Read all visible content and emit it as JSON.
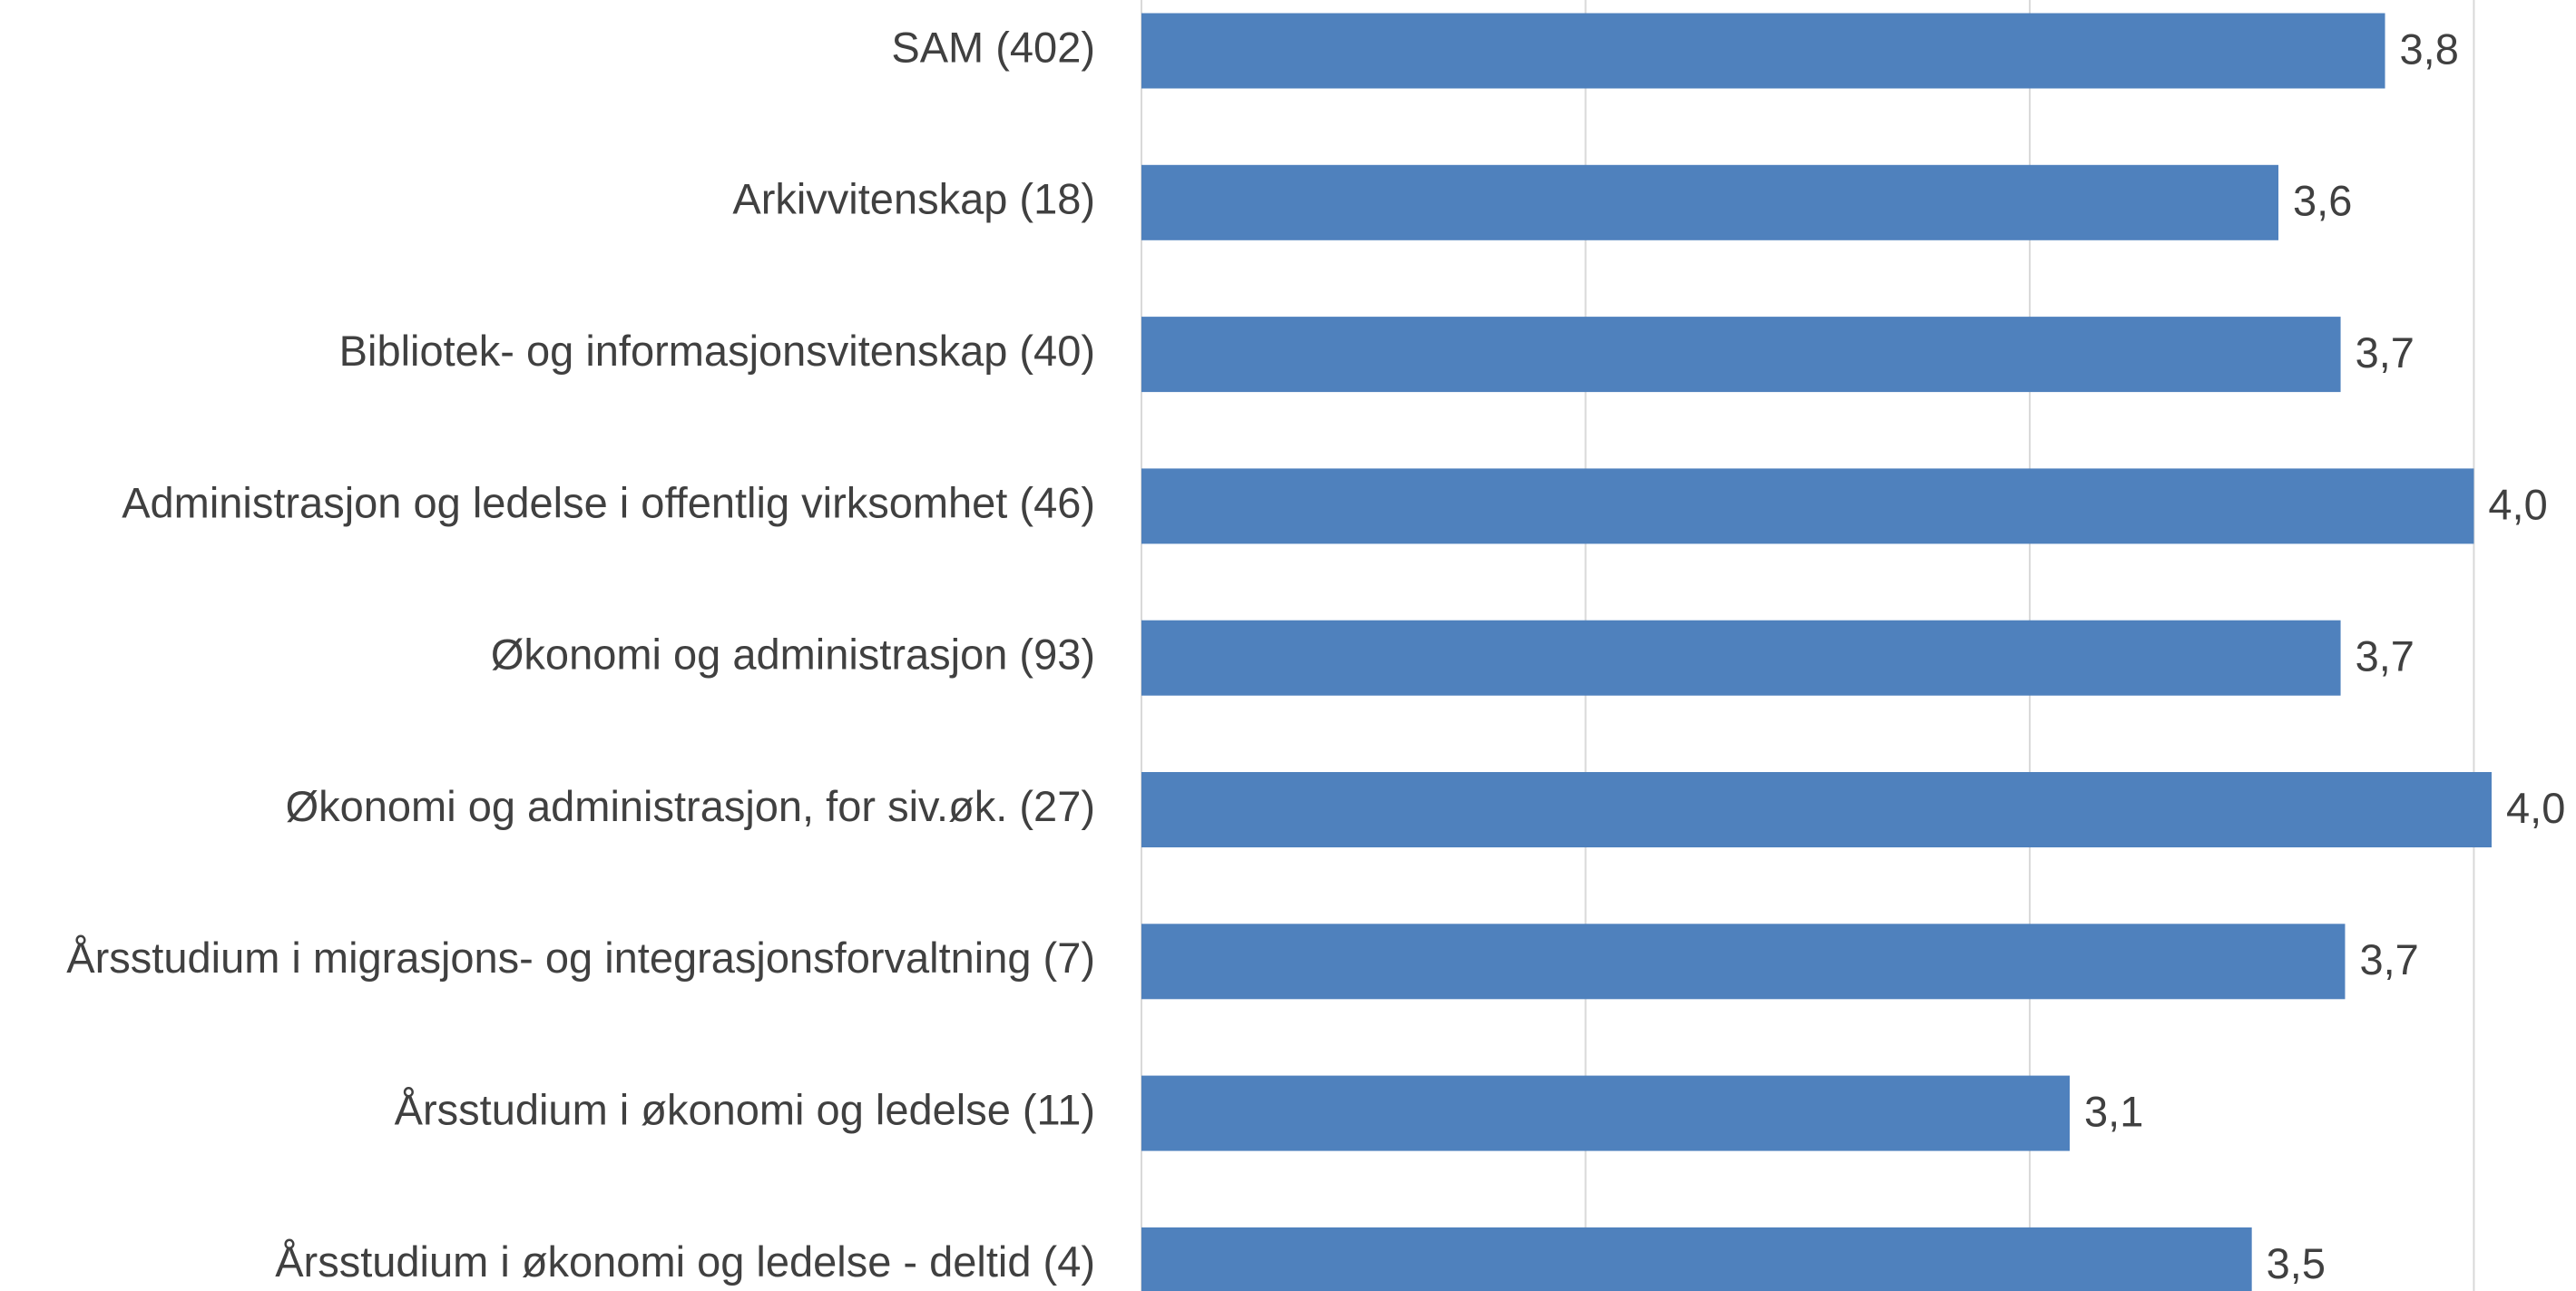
{
  "chart_data": {
    "type": "barh",
    "categories": [
      "SAM (402)",
      "Arkivvitenskap (18)",
      "Bibliotek- og informasjonsvitenskap (40)",
      "Administrasjon og ledelse i offentlig virksomhet (46)",
      "Økonomi og administrasjon (93)",
      "Økonomi og administrasjon, for siv.øk. (27)",
      "Årsstudium i migrasjons- og integrasjonsforvaltning (7)",
      "Årsstudium i økonomi og ledelse (11)",
      "Årsstudium i økonomi og ledelse - deltid (4)"
    ],
    "values": [
      3.8,
      3.56,
      3.7,
      4.0,
      3.7,
      4.04,
      3.71,
      3.09,
      3.5
    ],
    "value_labels": [
      "3,8",
      "3,6",
      "3,7",
      "4,0",
      "3,7",
      "4,0",
      "3,7",
      "3,1",
      "3,5"
    ],
    "color": "#4f81bd",
    "xlim": [
      1,
      4.23
    ],
    "xticks": [
      1,
      2,
      3,
      4
    ],
    "grid": true
  }
}
